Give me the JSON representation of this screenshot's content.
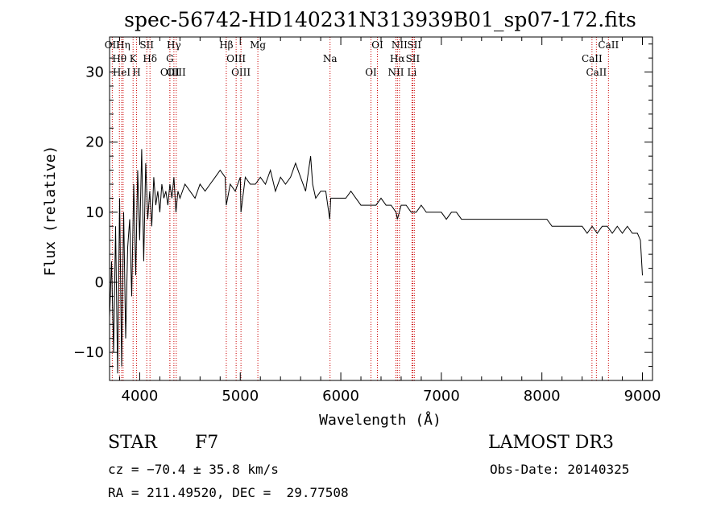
{
  "chart_data": {
    "type": "line",
    "title": "spec-56742-HD140231N313939B01_sp07-172.fits",
    "xlabel": "Wavelength (Å)",
    "ylabel": "Flux (relative)",
    "xlim": [
      3700,
      9100
    ],
    "ylim": [
      -14,
      35
    ],
    "xticks": [
      4000,
      5000,
      6000,
      7000,
      8000,
      9000
    ],
    "yticks": [
      -10,
      0,
      10,
      20,
      30
    ],
    "xtick_labels": [
      "4000",
      "5000",
      "6000",
      "7000",
      "8000",
      "9000"
    ],
    "ytick_labels": [
      "−10",
      "0",
      "10",
      "20",
      "30"
    ],
    "spectrum": {
      "x": [
        3700,
        3720,
        3740,
        3760,
        3780,
        3800,
        3820,
        3840,
        3860,
        3880,
        3900,
        3920,
        3940,
        3960,
        3980,
        4000,
        4020,
        4040,
        4060,
        4080,
        4100,
        4120,
        4140,
        4160,
        4180,
        4200,
        4220,
        4240,
        4260,
        4280,
        4300,
        4320,
        4340,
        4360,
        4380,
        4400,
        4450,
        4500,
        4550,
        4600,
        4650,
        4700,
        4750,
        4800,
        4850,
        4861,
        4900,
        4950,
        5000,
        5007,
        5050,
        5100,
        5150,
        5200,
        5250,
        5300,
        5350,
        5400,
        5450,
        5500,
        5550,
        5600,
        5650,
        5700,
        5720,
        5750,
        5800,
        5850,
        5890,
        5900,
        5950,
        6000,
        6050,
        6100,
        6150,
        6200,
        6250,
        6300,
        6350,
        6400,
        6450,
        6500,
        6550,
        6563,
        6600,
        6650,
        6700,
        6750,
        6800,
        6850,
        6900,
        6950,
        7000,
        7050,
        7100,
        7150,
        7200,
        7250,
        7300,
        7350,
        7400,
        7450,
        7500,
        7550,
        7600,
        7650,
        7700,
        7750,
        7800,
        7850,
        7900,
        7950,
        8000,
        8050,
        8100,
        8150,
        8200,
        8250,
        8300,
        8350,
        8400,
        8450,
        8500,
        8550,
        8600,
        8650,
        8700,
        8750,
        8800,
        8850,
        8900,
        8950,
        8980,
        9000
      ],
      "y": [
        -5,
        3,
        -10,
        8,
        -13,
        12,
        -12,
        10,
        -8,
        5,
        9,
        -2,
        14,
        1,
        16,
        6,
        19,
        3,
        17,
        9,
        13,
        8,
        15,
        11,
        13,
        10,
        14,
        12,
        13,
        11,
        14,
        12,
        15,
        10,
        13,
        12,
        14,
        13,
        12,
        14,
        13,
        14,
        15,
        16,
        15,
        11,
        14,
        13,
        15,
        10,
        15,
        14,
        14,
        15,
        14,
        16,
        13,
        15,
        14,
        15,
        17,
        15,
        13,
        18,
        14,
        12,
        13,
        13,
        9,
        12,
        12,
        12,
        12,
        13,
        12,
        11,
        11,
        11,
        11,
        12,
        11,
        11,
        10,
        9,
        11,
        11,
        10,
        10,
        11,
        10,
        10,
        10,
        10,
        9,
        10,
        10,
        9,
        9,
        9,
        9,
        9,
        9,
        9,
        9,
        9,
        9,
        9,
        9,
        9,
        9,
        9,
        9,
        9,
        9,
        8,
        8,
        8,
        8,
        8,
        8,
        8,
        7,
        8,
        7,
        8,
        8,
        7,
        8,
        7,
        8,
        7,
        7,
        6,
        1
      ]
    },
    "lines": [
      {
        "name": "OII",
        "wavelength": 3727
      },
      {
        "name": "Hθ",
        "wavelength": 3798
      },
      {
        "name": "HeI",
        "wavelength": 3820
      },
      {
        "name": "Hη",
        "wavelength": 3835
      },
      {
        "name": "K",
        "wavelength": 3934
      },
      {
        "name": "H",
        "wavelength": 3968
      },
      {
        "name": "SII",
        "wavelength": 4070
      },
      {
        "name": "Hδ",
        "wavelength": 4102
      },
      {
        "name": "OIII",
        "wavelength": 4300
      },
      {
        "name": "Hγ",
        "wavelength": 4340
      },
      {
        "name": "G",
        "wavelength": 4300
      },
      {
        "name": "OIII",
        "wavelength": 4363
      },
      {
        "name": "Hβ",
        "wavelength": 4861
      },
      {
        "name": "OIII",
        "wavelength": 4959
      },
      {
        "name": "OIII",
        "wavelength": 5007
      },
      {
        "name": "Mg",
        "wavelength": 5175
      },
      {
        "name": "Na",
        "wavelength": 5893
      },
      {
        "name": "OI",
        "wavelength": 6300
      },
      {
        "name": "OI",
        "wavelength": 6364
      },
      {
        "name": "Hα",
        "wavelength": 6563
      },
      {
        "name": "NII",
        "wavelength": 6548
      },
      {
        "name": "NII",
        "wavelength": 6583
      },
      {
        "name": "SII",
        "wavelength": 6716
      },
      {
        "name": "Li",
        "wavelength": 6708
      },
      {
        "name": "SII",
        "wavelength": 6731
      },
      {
        "name": "CaII",
        "wavelength": 8498
      },
      {
        "name": "CaII",
        "wavelength": 8542
      },
      {
        "name": "CaII",
        "wavelength": 8662
      }
    ]
  },
  "info": {
    "class": "STAR",
    "subclass": "F7",
    "survey": "LAMOST DR3",
    "cz": "cz = −70.4 ± 35.8 km/s",
    "obs_date": "Obs-Date: 20140325",
    "coords": "RA = 211.49520, DEC =  29.77508"
  }
}
